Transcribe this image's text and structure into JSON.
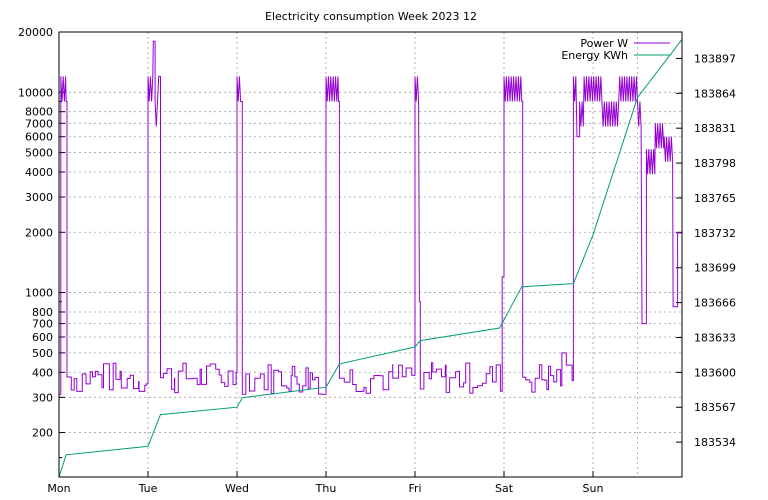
{
  "chart_data": {
    "type": "line",
    "title": "Electricity consumption Week 2023 12",
    "xlabel": "",
    "ylabel": "",
    "y2label": "",
    "x_ticks": [
      "Mon",
      "Tue",
      "Wed",
      "Thu",
      "Fri",
      "Sat",
      "Sun"
    ],
    "x_range_days": [
      0,
      7
    ],
    "y_scale": "log",
    "y_range": [
      120,
      20000
    ],
    "y_ticks": [
      {
        "value": 200,
        "label": "200"
      },
      {
        "value": 300,
        "label": "300"
      },
      {
        "value": 400,
        "label": "400"
      },
      {
        "value": 500,
        "label": "500"
      },
      {
        "value": 600,
        "label": "600"
      },
      {
        "value": 700,
        "label": "700"
      },
      {
        "value": 800,
        "label": "800"
      },
      {
        "value": 1000,
        "label": "1000"
      },
      {
        "value": 2000,
        "label": "2000"
      },
      {
        "value": 3000,
        "label": "3000"
      },
      {
        "value": 4000,
        "label": "4000"
      },
      {
        "value": 5000,
        "label": "5000"
      },
      {
        "value": 6000,
        "label": "6000"
      },
      {
        "value": 7000,
        "label": "7000"
      },
      {
        "value": 8000,
        "label": "8000"
      },
      {
        "value": 10000,
        "label": "10000"
      },
      {
        "value": 20000,
        "label": "20000"
      }
    ],
    "y2_scale": "linear",
    "y2_range": [
      183501,
      183922
    ],
    "y2_ticks": [
      {
        "value": 183534,
        "label": "183534"
      },
      {
        "value": 183567,
        "label": "183567"
      },
      {
        "value": 183600,
        "label": "183600"
      },
      {
        "value": 183633,
        "label": "183633"
      },
      {
        "value": 183666,
        "label": "183666"
      },
      {
        "value": 183699,
        "label": "183699"
      },
      {
        "value": 183732,
        "label": "183732"
      },
      {
        "value": 183765,
        "label": "183765"
      },
      {
        "value": 183798,
        "label": "183798"
      },
      {
        "value": 183831,
        "label": "183831"
      },
      {
        "value": 183864,
        "label": "183864"
      },
      {
        "value": 183897,
        "label": "183897"
      }
    ],
    "grid": true,
    "legend_position": "top-right",
    "series": [
      {
        "name": "Power W",
        "axis": "left",
        "color": "#9400d3",
        "baseline_range": [
          310,
          450
        ],
        "points": [
          [
            0.0,
            310
          ],
          [
            0.02,
            12000
          ],
          [
            0.08,
            9000
          ],
          [
            0.09,
            330
          ],
          [
            0.2,
            450
          ],
          [
            0.35,
            310
          ],
          [
            0.5,
            420
          ],
          [
            0.7,
            310
          ],
          [
            0.9,
            400
          ],
          [
            0.98,
            350
          ],
          [
            1.0,
            12000
          ],
          [
            1.06,
            18000
          ],
          [
            1.08,
            9000
          ],
          [
            1.12,
            12000
          ],
          [
            1.14,
            330
          ],
          [
            1.3,
            450
          ],
          [
            1.45,
            310
          ],
          [
            1.6,
            500
          ],
          [
            1.7,
            310
          ],
          [
            1.8,
            420
          ],
          [
            1.9,
            310
          ],
          [
            1.99,
            400
          ],
          [
            2.0,
            12000
          ],
          [
            2.05,
            9000
          ],
          [
            2.06,
            430
          ],
          [
            2.2,
            310
          ],
          [
            2.35,
            420
          ],
          [
            2.5,
            310
          ],
          [
            2.62,
            460
          ],
          [
            2.7,
            310
          ],
          [
            2.8,
            420
          ],
          [
            2.95,
            310
          ],
          [
            3.0,
            12000
          ],
          [
            3.14,
            9000
          ],
          [
            3.15,
            330
          ],
          [
            3.3,
            420
          ],
          [
            3.45,
            310
          ],
          [
            3.6,
            410
          ],
          [
            3.75,
            310
          ],
          [
            3.9,
            400
          ],
          [
            4.0,
            12000
          ],
          [
            4.05,
            900
          ],
          [
            4.06,
            330
          ],
          [
            4.1,
            460
          ],
          [
            4.2,
            310
          ],
          [
            4.35,
            420
          ],
          [
            4.5,
            310
          ],
          [
            4.65,
            440
          ],
          [
            4.8,
            310
          ],
          [
            4.98,
            1200
          ],
          [
            5.0,
            12000
          ],
          [
            5.2,
            9000
          ],
          [
            5.21,
            330
          ],
          [
            5.35,
            460
          ],
          [
            5.5,
            310
          ],
          [
            5.65,
            500
          ],
          [
            5.7,
            310
          ],
          [
            5.78,
            12000
          ],
          [
            5.82,
            6000
          ],
          [
            5.85,
            9000
          ],
          [
            5.9,
            12000
          ],
          [
            6.1,
            9000
          ],
          [
            6.3,
            12000
          ],
          [
            6.5,
            9000
          ],
          [
            6.55,
            700
          ],
          [
            6.6,
            5200
          ],
          [
            6.7,
            7000
          ],
          [
            6.8,
            6000
          ],
          [
            6.9,
            850
          ],
          [
            6.95,
            2000
          ],
          [
            7.0,
            800
          ]
        ]
      },
      {
        "name": "Energy KWh",
        "axis": "right",
        "color": "#009e73",
        "points": [
          [
            0.0,
            183501
          ],
          [
            0.08,
            183522
          ],
          [
            1.0,
            183530
          ],
          [
            1.14,
            183560
          ],
          [
            2.0,
            183567
          ],
          [
            2.06,
            183576
          ],
          [
            3.0,
            183586
          ],
          [
            3.15,
            183608
          ],
          [
            4.0,
            183624
          ],
          [
            4.06,
            183630
          ],
          [
            4.95,
            183642
          ],
          [
            5.2,
            183681
          ],
          [
            5.78,
            183684
          ],
          [
            6.0,
            183730
          ],
          [
            6.5,
            183860
          ],
          [
            7.0,
            183915
          ]
        ]
      }
    ]
  }
}
